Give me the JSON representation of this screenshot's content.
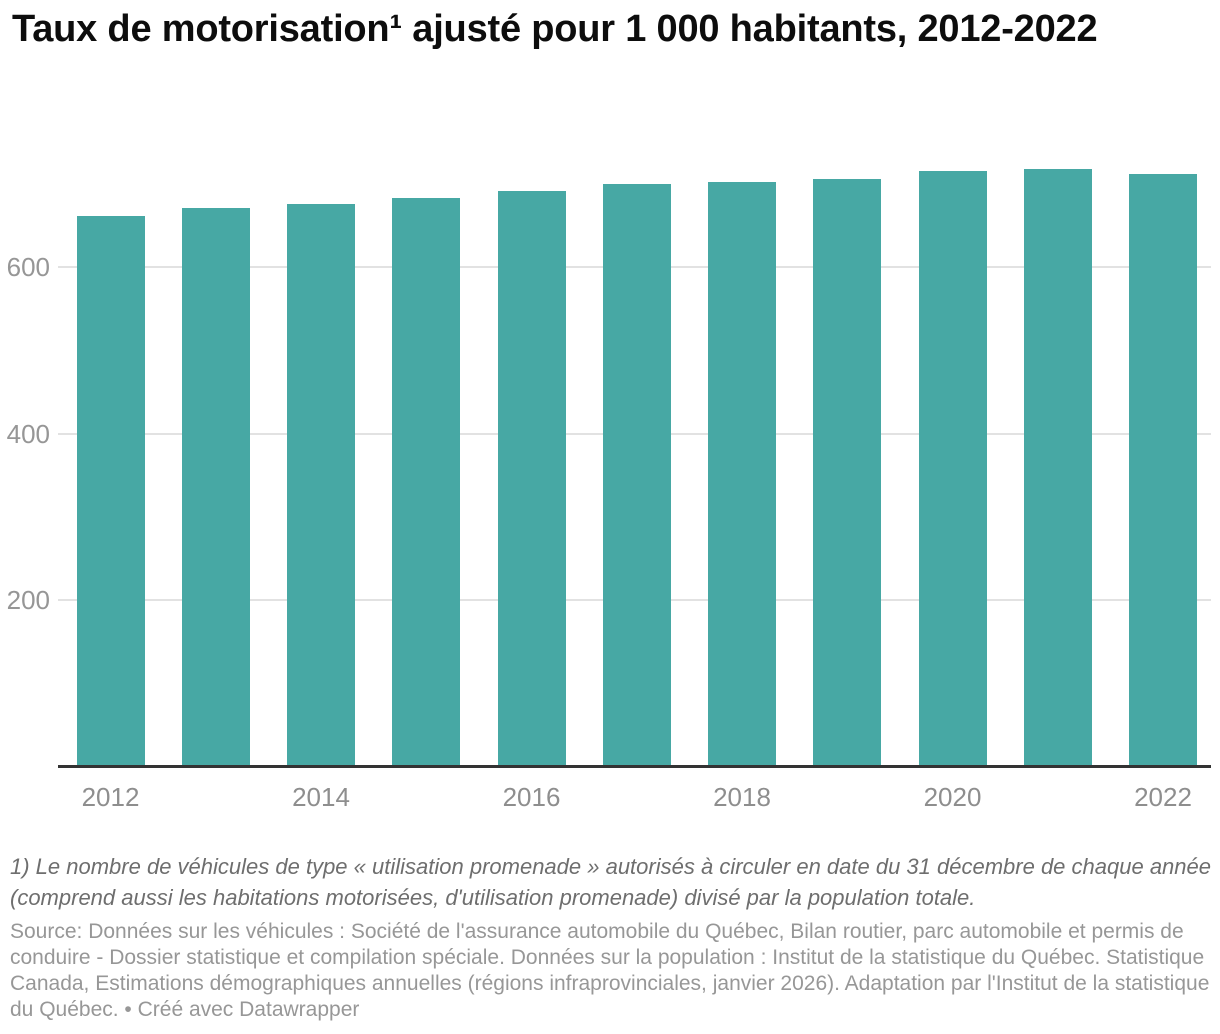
{
  "chart": {
    "title": "Taux de motorisation¹ ajusté pour 1 000 habitants, 2012-2022",
    "footnote": "1) Le nombre de véhicules de type « utilisation promenade » autorisés à circuler en date du 31 décembre de chaque année (comprend aussi les habitations motorisées, d'utilisation promenade) divisé par la population totale.",
    "source": "Source: Données sur les véhicules : Société de l'assurance automobile du Québec, Bilan routier, parc automobile et permis de conduire - Dossier statistique et compilation spéciale. Données sur la population : Institut de la statistique du Québec. Statistique Canada, Estimations démographiques annuelles (régions infraprovinciales, janvier 2026). Adaptation par l'Institut de la statistique du Québec. • Créé avec Datawrapper",
    "colors": {
      "bar": "#47a8a4",
      "gridline": "#e2e2e2",
      "axis_line": "#333333",
      "y_tick_label": "#969696",
      "x_tick_label": "#8e8e8e",
      "title": "#0d0d0d",
      "footnote": "#6e6e6e",
      "source": "#979797"
    }
  },
  "chart_data": {
    "type": "bar",
    "title": "Taux de motorisation¹ ajusté pour 1 000 habitants, 2012-2022",
    "categories": [
      "2012",
      "2013",
      "2014",
      "2015",
      "2016",
      "2017",
      "2018",
      "2019",
      "2020",
      "2021",
      "2022"
    ],
    "values": [
      661,
      671,
      676,
      683,
      691,
      700,
      702,
      706,
      715,
      718,
      711
    ],
    "x_tick_labels": [
      "2012",
      "2014",
      "2016",
      "2018",
      "2020",
      "2022"
    ],
    "y_ticks": [
      200,
      400,
      600
    ],
    "ylim": [
      0,
      735
    ],
    "xlabel": "",
    "ylabel": "",
    "grid": "horizontal",
    "legend": "none",
    "bar_color": "#47a8a4"
  }
}
